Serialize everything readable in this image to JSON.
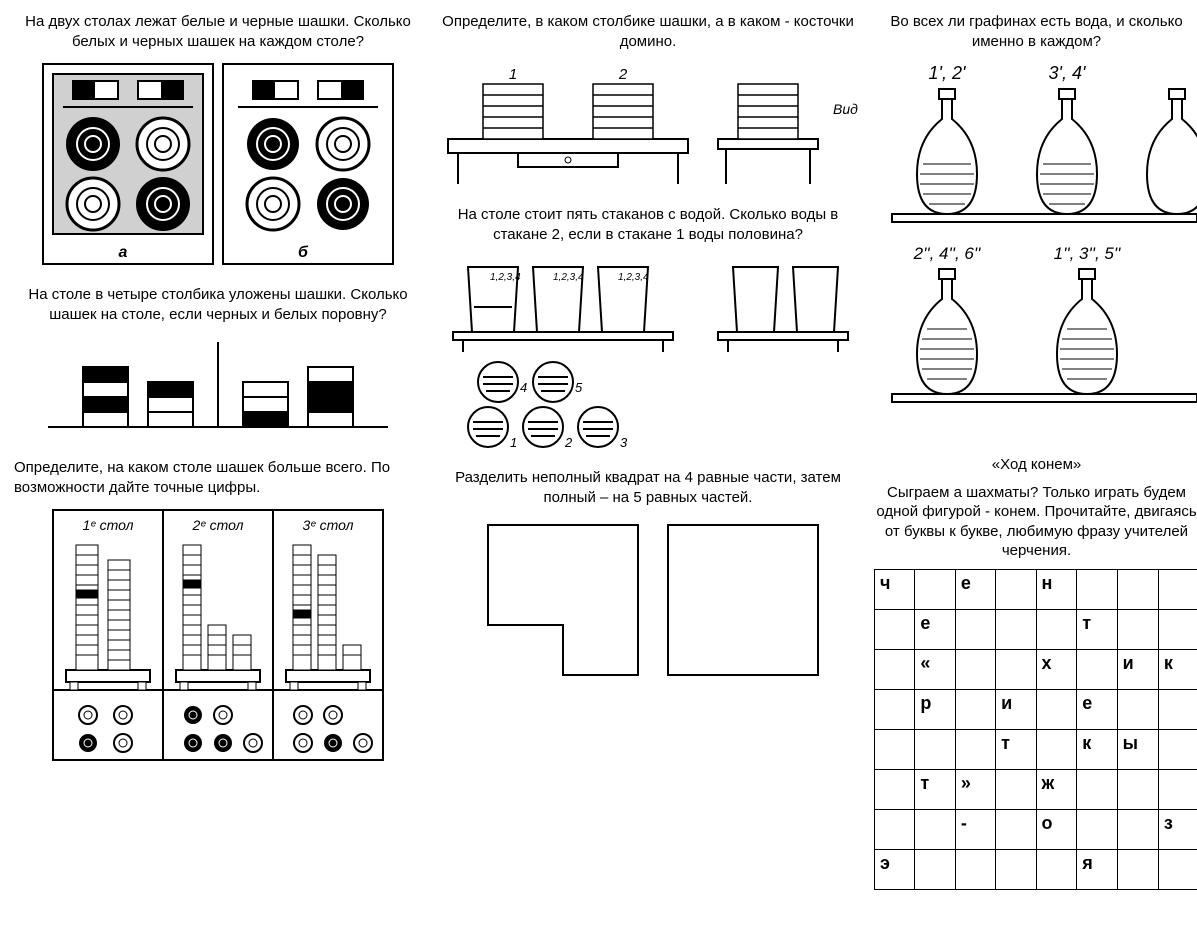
{
  "col1": {
    "task1_text": "На двух столах лежат белые и черные шашки. Сколько белых и черных шашек на каждом столе?",
    "task1_label_a": "а",
    "task1_label_b": "б",
    "task2_text": "На столе в четыре столбика уложены шашки. Сколько шашек на столе, если черных и белых поровну?",
    "task3_text": "Определите, на каком столе шашек больше всего. По возможности дайте точные цифры.",
    "task3_labels": [
      "1ᵉ стол",
      "2ᵉ стол",
      "3ᵉ стол"
    ]
  },
  "col2": {
    "task1_text": "Определите, в каком столбике шашки, а в каком -  косточки домино.",
    "task1_nums": [
      "1",
      "2"
    ],
    "task1_side": "Вид сбоку",
    "task2_text": "На столе стоит пять стаканов с водой. Сколько воды в стакане 2, если в стакане 1 воды половина?",
    "task2_circle_nums": [
      "4",
      "5",
      "1",
      "2",
      "3"
    ],
    "task3_text": "Разделить неполный квадрат на 4 равные части, затем полный – на 5 равных частей."
  },
  "col3": {
    "task1_text": "Во всех ли графинах есть вода, и сколько именно в каждом?",
    "task1_top_labels": [
      "1', 2'",
      "3', 4'"
    ],
    "task1_bottom_labels": [
      "2'', 4'', 6''",
      "1'', 3'', 5''"
    ],
    "task2_title": "«Ход конем»",
    "task2_text": "Сыграем а шахматы? Только играть будем одной фигурой -  конем. Прочитайте, двигаясь от буквы к букве, любимую фразу учителей черчения.",
    "knight_grid": [
      [
        "ч",
        "",
        "е",
        "",
        "н",
        "",
        "",
        ""
      ],
      [
        "",
        "е",
        "",
        "",
        "",
        "т",
        "",
        ""
      ],
      [
        "",
        "«",
        "",
        "",
        "х",
        "",
        "и",
        "к"
      ],
      [
        "",
        "р",
        "",
        "и",
        "",
        "е",
        "",
        ""
      ],
      [
        "",
        "",
        "",
        "т",
        "",
        "к",
        "ы",
        ""
      ],
      [
        "",
        "т",
        "»",
        "",
        "ж",
        "",
        "",
        ""
      ],
      [
        "",
        "",
        "-",
        "",
        "о",
        "",
        "",
        "з"
      ],
      [
        "э",
        "",
        "",
        "",
        "",
        "я",
        "",
        ""
      ]
    ]
  },
  "colors": {
    "stroke": "#000000",
    "bg": "#ffffff"
  }
}
